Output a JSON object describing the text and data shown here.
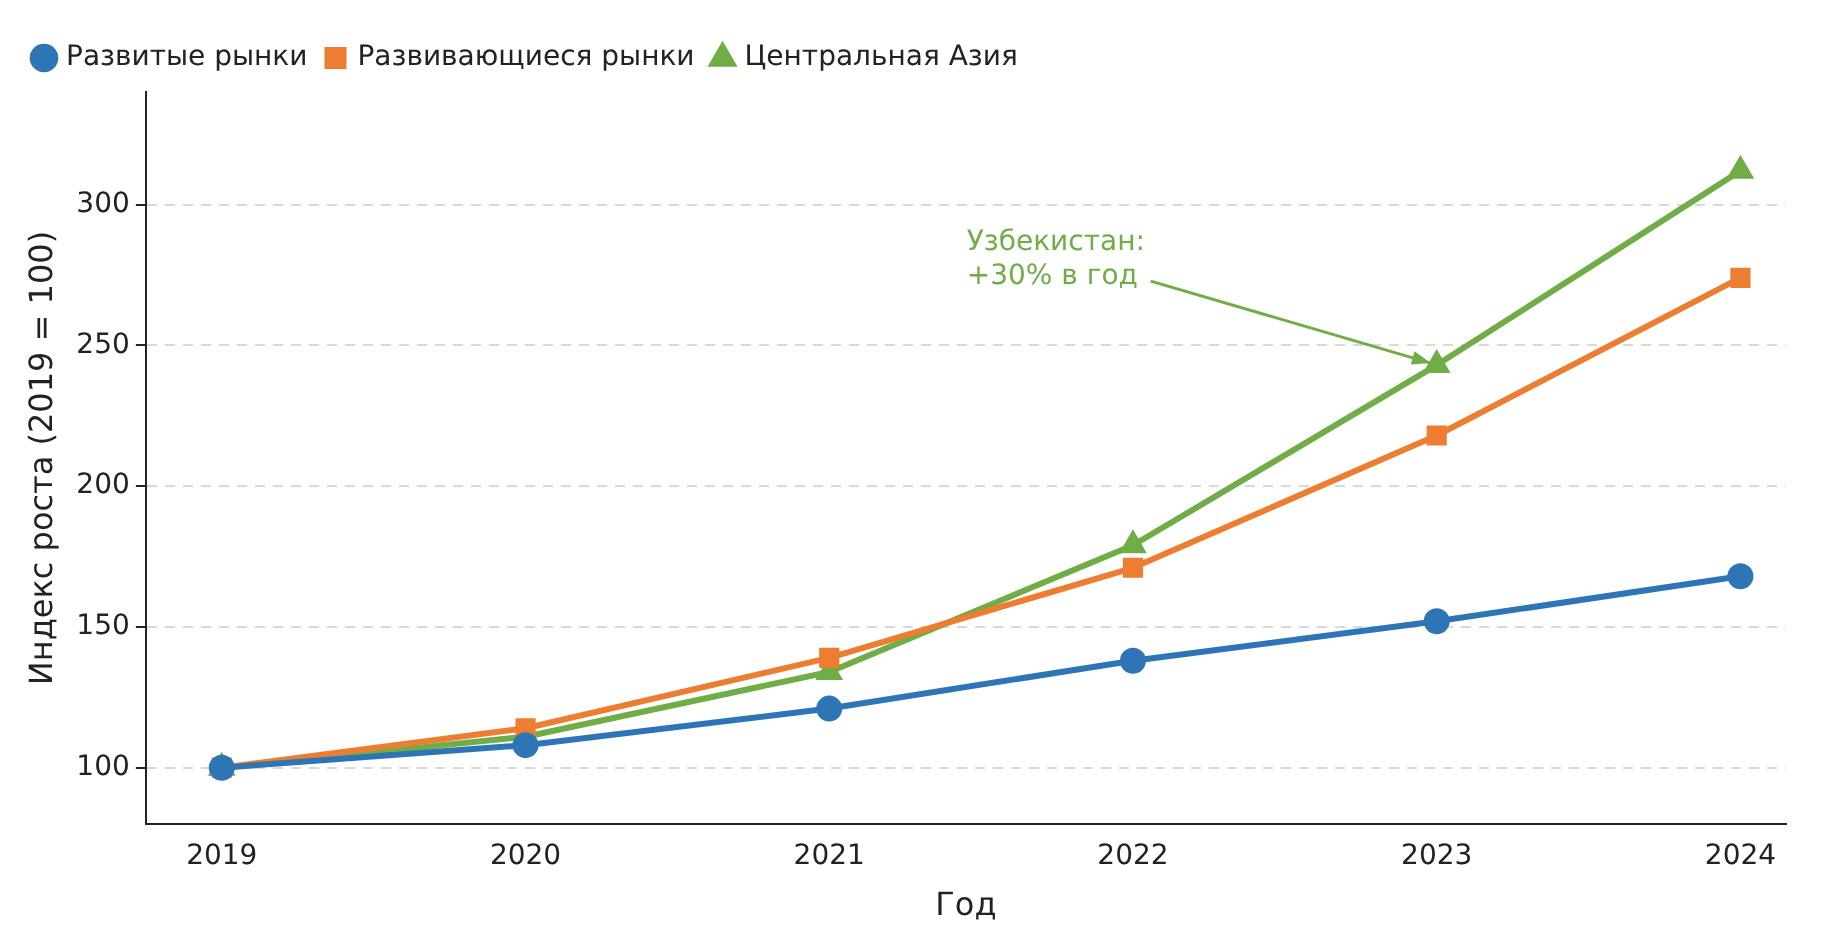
{
  "chart_data": {
    "type": "line",
    "xlabel": "Год",
    "ylabel": "Индекс роста (2019 = 100)",
    "x": [
      2019,
      2020,
      2021,
      2022,
      2023,
      2024
    ],
    "xlim": [
      2018.75,
      2024.15
    ],
    "xticks": [
      2019,
      2020,
      2021,
      2022,
      2023,
      2024
    ],
    "ylim": [
      80,
      340
    ],
    "yticks": [
      100,
      150,
      200,
      250,
      300
    ],
    "grid": "y",
    "legend": "top left",
    "line_style": "solid",
    "series": [
      {
        "name": "Развитые рынки",
        "color": "#2e75b6",
        "marker": "circle",
        "values": [
          100,
          108,
          121,
          138,
          152,
          168
        ]
      },
      {
        "name": "Развивающиеся рынки",
        "color": "#ed7d31",
        "marker": "square",
        "values": [
          100,
          114,
          139,
          171,
          218,
          274
        ]
      },
      {
        "name": "Центральная Азия",
        "color": "#70ad47",
        "marker": "triangle",
        "values": [
          100,
          111,
          134,
          179,
          243,
          312
        ]
      }
    ],
    "annotations": [
      {
        "text": "Узбекистан:\n+30% в год",
        "x": 2023,
        "y": 243
      }
    ]
  }
}
